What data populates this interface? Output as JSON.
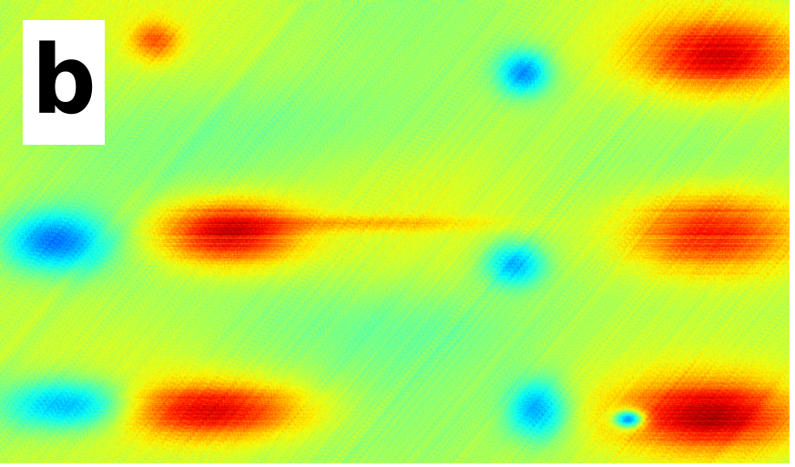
{
  "figure": {
    "panel_label": "b",
    "colormap": "jet"
  }
}
